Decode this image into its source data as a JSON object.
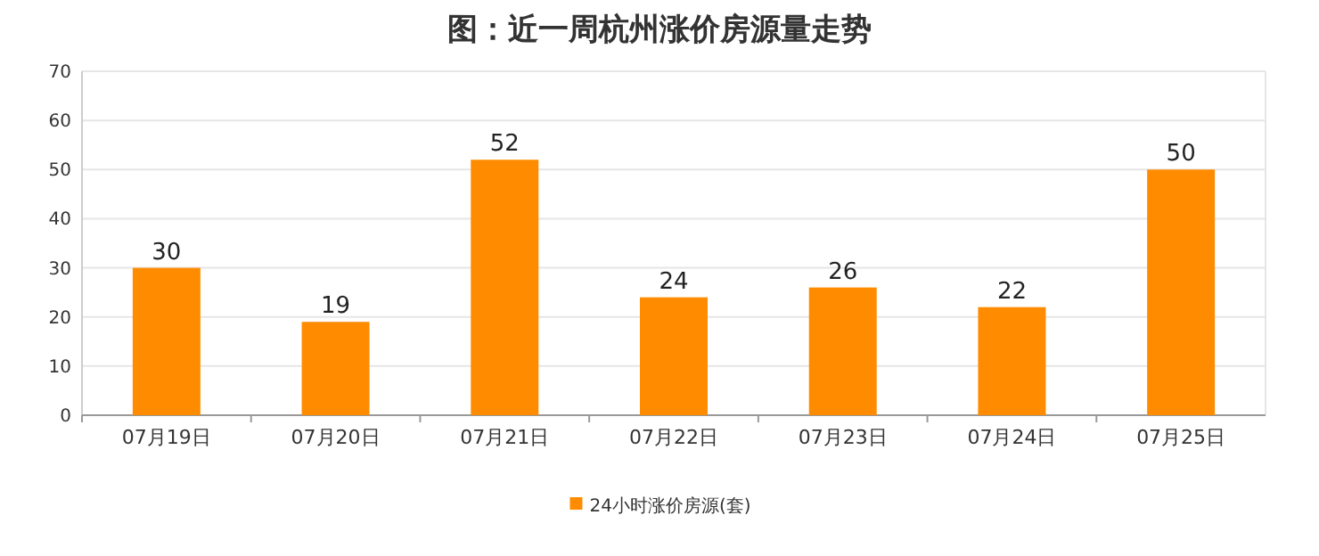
{
  "chart_data": {
    "type": "bar",
    "title": "图：近一周杭州涨价房源量走势",
    "categories": [
      "07月19日",
      "07月20日",
      "07月21日",
      "07月22日",
      "07月23日",
      "07月24日",
      "07月25日"
    ],
    "series": [
      {
        "name": "24小时涨价房源(套)",
        "color": "#ff8c00",
        "values": [
          30,
          19,
          52,
          24,
          26,
          22,
          50
        ]
      }
    ],
    "ylim": [
      0,
      70
    ],
    "yticks": [
      0,
      10,
      20,
      30,
      40,
      50,
      60,
      70
    ],
    "grid": "y",
    "data_labels": true,
    "legend": "bottom"
  }
}
